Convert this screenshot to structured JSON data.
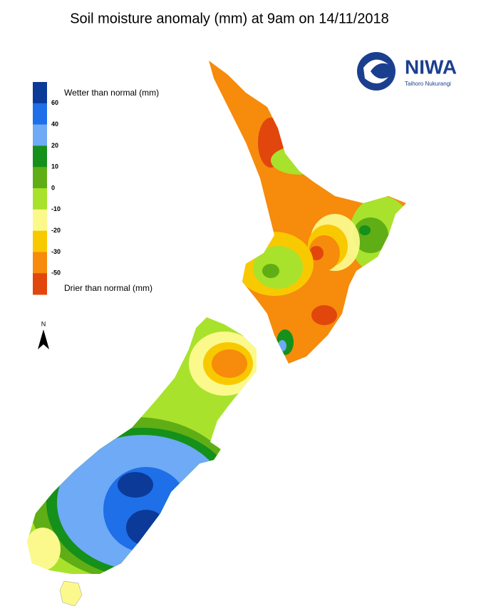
{
  "title": "Soil moisture anomaly (mm) at 9am on 14/11/2018",
  "legend": {
    "top_label": "Wetter than normal (mm)",
    "bottom_label": "Drier than normal (mm)",
    "colors": [
      "#0b3a98",
      "#1e6fe8",
      "#6eaaf5",
      "#15901a",
      "#5fae16",
      "#a9e22c",
      "#fbf98c",
      "#f9c900",
      "#f68b0c",
      "#e1460c"
    ],
    "ticks": [
      60,
      40,
      20,
      10,
      0,
      -10,
      -20,
      -30,
      -50
    ]
  },
  "north": "N",
  "logo": {
    "name": "NIWA",
    "subtitle": "Taihoro Nukurangi"
  }
}
